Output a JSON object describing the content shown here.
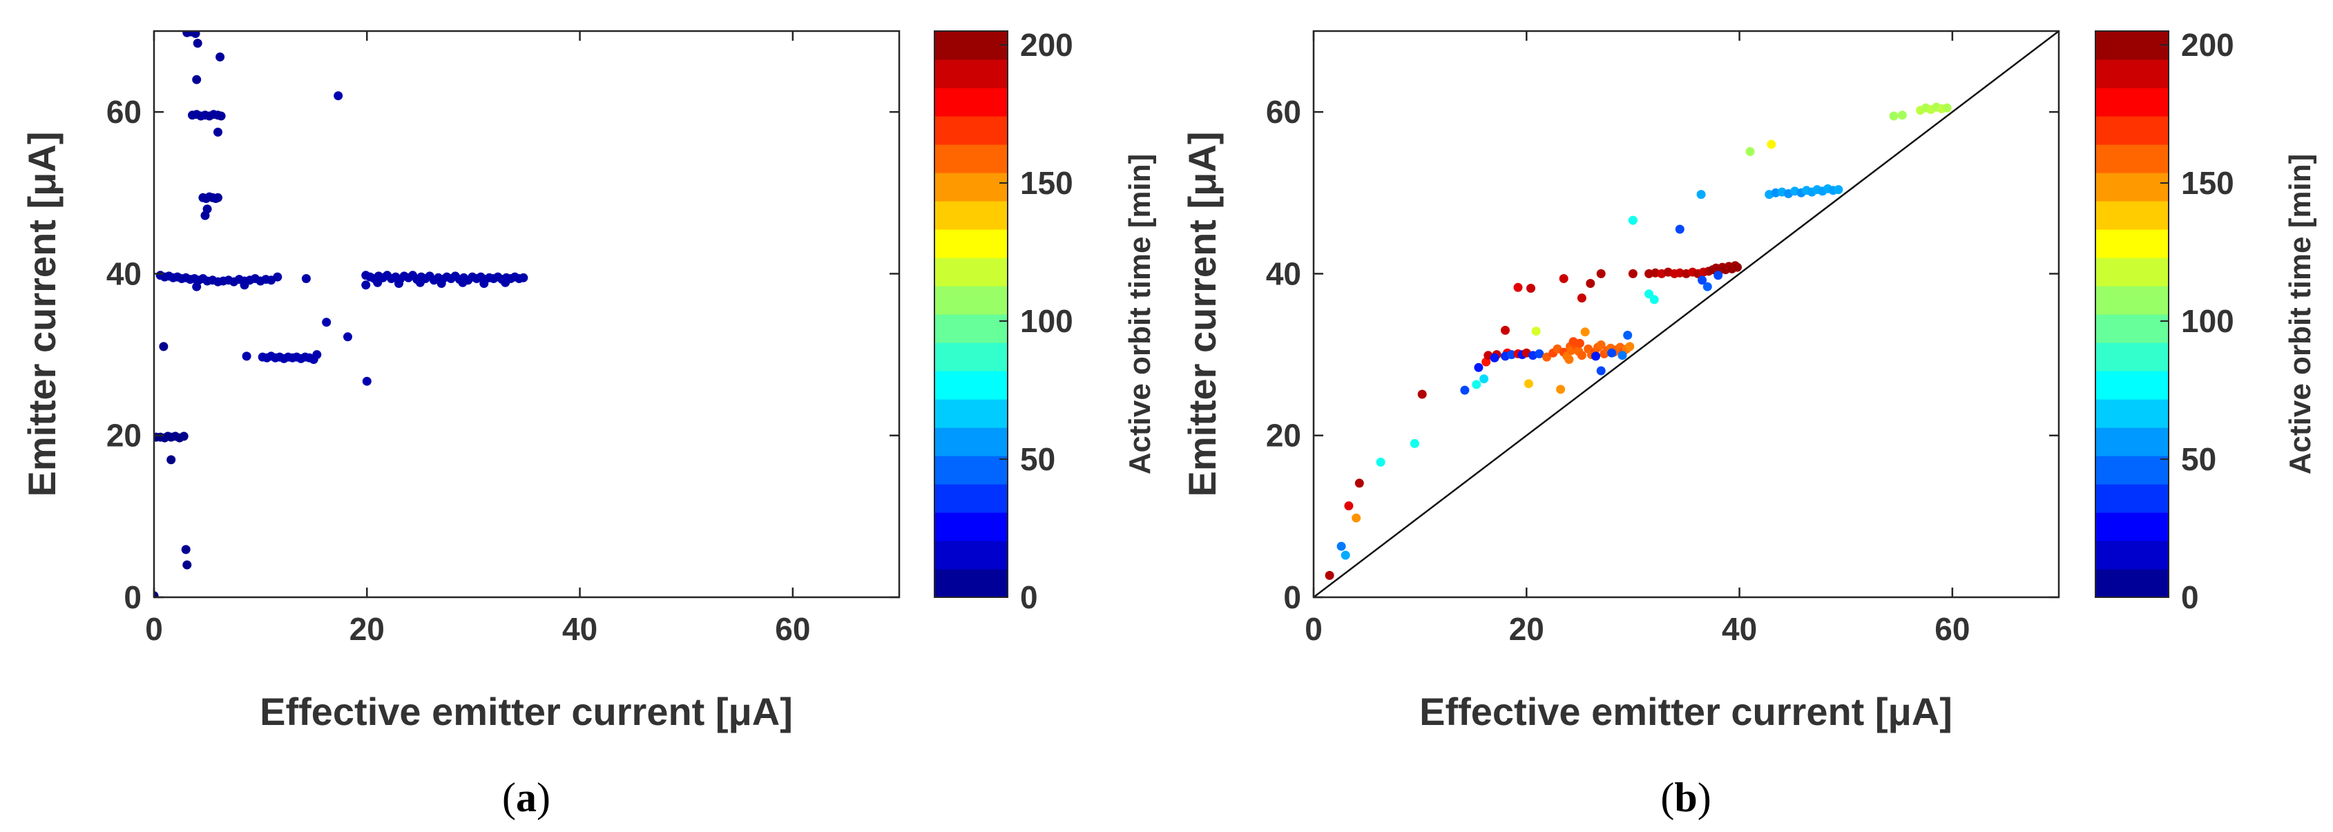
{
  "chart_data": [
    {
      "type": "scatter",
      "panel_label": "a",
      "title": "",
      "xlabel": "Effective emitter current [μA]",
      "ylabel": "Emitter current [μA]",
      "xlim": [
        0,
        70
      ],
      "ylim": [
        0,
        70
      ],
      "xticks": [
        "0",
        "20",
        "40",
        "60"
      ],
      "yticks": [
        "0",
        "20",
        "40",
        "60"
      ],
      "grid": false,
      "colorbar": {
        "label": "Active orbit time [min]",
        "range": [
          0,
          205
        ],
        "ticks": [
          "0",
          "50",
          "100",
          "150",
          "200"
        ],
        "colormap": "jet"
      },
      "reference_line": null,
      "points": [
        [
          0.0,
          0.2,
          0
        ],
        [
          0.2,
          19.8,
          2
        ],
        [
          0.6,
          19.8,
          2
        ],
        [
          1.0,
          19.7,
          2
        ],
        [
          1.3,
          19.9,
          2
        ],
        [
          1.6,
          19.8,
          2
        ],
        [
          2.0,
          19.9,
          2
        ],
        [
          2.4,
          19.7,
          2
        ],
        [
          2.8,
          19.9,
          2
        ],
        [
          1.6,
          17.0,
          2
        ],
        [
          0.9,
          31.0,
          3
        ],
        [
          3.0,
          5.9,
          3
        ],
        [
          3.1,
          4.0,
          3
        ],
        [
          3.1,
          69.8,
          5
        ],
        [
          3.5,
          69.9,
          5
        ],
        [
          3.9,
          69.7,
          5
        ],
        [
          4.1,
          68.5,
          5
        ],
        [
          4.0,
          64.0,
          5
        ],
        [
          3.6,
          59.6,
          6
        ],
        [
          4.0,
          59.7,
          6
        ],
        [
          4.4,
          59.5,
          6
        ],
        [
          4.8,
          59.6,
          6
        ],
        [
          5.2,
          59.5,
          6
        ],
        [
          5.6,
          59.7,
          6
        ],
        [
          6.0,
          59.6,
          6
        ],
        [
          6.3,
          59.5,
          6
        ],
        [
          6.0,
          57.5,
          6
        ],
        [
          6.2,
          66.8,
          6
        ],
        [
          4.6,
          49.4,
          6
        ],
        [
          4.9,
          49.3,
          6
        ],
        [
          5.2,
          49.5,
          6
        ],
        [
          5.5,
          49.4,
          6
        ],
        [
          5.8,
          49.3,
          6
        ],
        [
          6.0,
          49.4,
          6
        ],
        [
          4.8,
          47.2,
          6
        ],
        [
          5.0,
          48.0,
          6
        ],
        [
          0.6,
          39.8,
          8
        ],
        [
          1.0,
          39.6,
          8
        ],
        [
          1.4,
          39.7,
          8
        ],
        [
          1.8,
          39.5,
          8
        ],
        [
          2.2,
          39.6,
          8
        ],
        [
          2.6,
          39.4,
          8
        ],
        [
          3.0,
          39.5,
          8
        ],
        [
          3.4,
          39.3,
          8
        ],
        [
          3.8,
          39.4,
          8
        ],
        [
          4.2,
          39.2,
          8
        ],
        [
          4.6,
          39.4,
          8
        ],
        [
          5.0,
          39.1,
          8
        ],
        [
          5.5,
          39.2,
          8
        ],
        [
          6.0,
          39.0,
          8
        ],
        [
          6.5,
          39.1,
          8
        ],
        [
          7.0,
          39.2,
          8
        ],
        [
          7.5,
          39.0,
          8
        ],
        [
          8.0,
          39.3,
          8
        ],
        [
          8.5,
          39.1,
          8
        ],
        [
          9.0,
          39.2,
          8
        ],
        [
          9.5,
          39.4,
          8
        ],
        [
          10.0,
          39.1,
          8
        ],
        [
          10.5,
          39.3,
          8
        ],
        [
          11.0,
          39.2,
          8
        ],
        [
          11.6,
          39.6,
          8
        ],
        [
          14.3,
          39.4,
          8
        ],
        [
          4.0,
          38.4,
          8
        ],
        [
          8.5,
          38.6,
          8
        ],
        [
          8.7,
          29.8,
          10
        ],
        [
          10.2,
          29.7,
          10
        ],
        [
          10.6,
          29.6,
          10
        ],
        [
          11.0,
          29.8,
          10
        ],
        [
          11.4,
          29.6,
          10
        ],
        [
          11.8,
          29.7,
          10
        ],
        [
          12.2,
          29.5,
          10
        ],
        [
          12.6,
          29.7,
          10
        ],
        [
          13.0,
          29.6,
          10
        ],
        [
          13.4,
          29.7,
          10
        ],
        [
          13.8,
          29.5,
          10
        ],
        [
          14.2,
          29.7,
          10
        ],
        [
          14.6,
          29.6,
          10
        ],
        [
          15.0,
          29.4,
          10
        ],
        [
          15.3,
          30.0,
          10
        ],
        [
          16.2,
          34.0,
          10
        ],
        [
          17.3,
          62.0,
          10
        ],
        [
          18.2,
          32.2,
          10
        ],
        [
          20.0,
          26.7,
          10
        ],
        [
          19.9,
          39.8,
          9
        ],
        [
          19.9,
          38.6,
          9
        ],
        [
          20.3,
          39.6,
          9
        ],
        [
          20.7,
          39.4,
          9
        ],
        [
          21.1,
          39.7,
          9
        ],
        [
          21.5,
          39.5,
          9
        ],
        [
          21.9,
          39.8,
          9
        ],
        [
          22.3,
          39.4,
          9
        ],
        [
          22.7,
          39.6,
          9
        ],
        [
          23.1,
          39.3,
          9
        ],
        [
          23.5,
          39.7,
          9
        ],
        [
          23.9,
          39.5,
          9
        ],
        [
          24.3,
          39.8,
          9
        ],
        [
          24.7,
          39.3,
          9
        ],
        [
          25.1,
          39.6,
          9
        ],
        [
          25.5,
          39.4,
          9
        ],
        [
          25.9,
          39.7,
          9
        ],
        [
          26.3,
          39.2,
          9
        ],
        [
          26.7,
          39.5,
          9
        ],
        [
          27.1,
          39.3,
          9
        ],
        [
          27.5,
          39.6,
          9
        ],
        [
          27.9,
          39.4,
          9
        ],
        [
          28.3,
          39.7,
          9
        ],
        [
          28.7,
          39.3,
          9
        ],
        [
          29.1,
          39.5,
          9
        ],
        [
          29.5,
          39.2,
          9
        ],
        [
          29.9,
          39.6,
          9
        ],
        [
          30.3,
          39.4,
          9
        ],
        [
          30.7,
          39.6,
          9
        ],
        [
          31.1,
          39.3,
          9
        ],
        [
          31.5,
          39.5,
          9
        ],
        [
          31.9,
          39.4,
          9
        ],
        [
          32.3,
          39.6,
          9
        ],
        [
          32.7,
          39.3,
          9
        ],
        [
          33.1,
          39.5,
          9
        ],
        [
          33.5,
          39.4,
          9
        ],
        [
          33.9,
          39.6,
          9
        ],
        [
          34.3,
          39.4,
          9
        ],
        [
          34.7,
          39.5,
          9
        ],
        [
          21.0,
          38.9,
          9
        ],
        [
          23.0,
          38.8,
          9
        ],
        [
          25.0,
          38.9,
          9
        ],
        [
          27.0,
          38.8,
          9
        ],
        [
          29.0,
          38.9,
          9
        ],
        [
          31.0,
          38.8,
          9
        ],
        [
          33.0,
          38.9,
          9
        ]
      ]
    },
    {
      "type": "scatter",
      "panel_label": "b",
      "title": "",
      "xlabel": "Effective emitter current [μA]",
      "ylabel": "Emitter current [μA]",
      "xlim": [
        0,
        70
      ],
      "ylim": [
        0,
        70
      ],
      "xticks": [
        "0",
        "20",
        "40",
        "60"
      ],
      "yticks": [
        "0",
        "20",
        "40",
        "60"
      ],
      "grid": false,
      "colorbar": {
        "label": "Active orbit time [min]",
        "range": [
          0,
          205
        ],
        "ticks": [
          "0",
          "50",
          "100",
          "150",
          "200"
        ],
        "colormap": "jet"
      },
      "reference_line": {
        "x": [
          0,
          70
        ],
        "y": [
          0,
          70
        ]
      },
      "points": [
        [
          1.5,
          2.7,
          195
        ],
        [
          2.6,
          6.3,
          50
        ],
        [
          3.0,
          5.2,
          60
        ],
        [
          3.3,
          11.3,
          185
        ],
        [
          4.0,
          9.8,
          150
        ],
        [
          4.3,
          14.1,
          195
        ],
        [
          6.3,
          16.7,
          80
        ],
        [
          9.5,
          19.0,
          80
        ],
        [
          10.2,
          25.1,
          195
        ],
        [
          14.2,
          25.6,
          40
        ],
        [
          15.3,
          26.3,
          80
        ],
        [
          16.0,
          27.0,
          70
        ],
        [
          15.5,
          28.4,
          30
        ],
        [
          16.2,
          29.1,
          175
        ],
        [
          16.4,
          29.9,
          190
        ],
        [
          17.2,
          30.0,
          190
        ],
        [
          18.2,
          30.2,
          180
        ],
        [
          17.0,
          29.6,
          30
        ],
        [
          18.0,
          29.8,
          35
        ],
        [
          18.6,
          30.0,
          40
        ],
        [
          19.2,
          30.1,
          185
        ],
        [
          19.6,
          30.0,
          30
        ],
        [
          20.0,
          30.2,
          190
        ],
        [
          20.6,
          29.9,
          35
        ],
        [
          21.2,
          30.1,
          40
        ],
        [
          18.0,
          33.0,
          190
        ],
        [
          19.2,
          38.3,
          185
        ],
        [
          20.4,
          38.2,
          190
        ],
        [
          20.9,
          32.9,
          120
        ],
        [
          20.2,
          26.4,
          140
        ],
        [
          21.9,
          29.7,
          160
        ],
        [
          22.5,
          30.2,
          165
        ],
        [
          22.9,
          30.7,
          160
        ],
        [
          23.2,
          25.7,
          150
        ],
        [
          23.5,
          30.3,
          165
        ],
        [
          23.8,
          29.8,
          155
        ],
        [
          24.1,
          31.0,
          160
        ],
        [
          24.2,
          30.5,
          158
        ],
        [
          24.6,
          31.2,
          162
        ],
        [
          24.9,
          30.4,
          158
        ],
        [
          25.2,
          29.9,
          160
        ],
        [
          25.5,
          32.8,
          150
        ],
        [
          25.8,
          30.7,
          160
        ],
        [
          26.1,
          30.0,
          158
        ],
        [
          26.4,
          30.3,
          162
        ],
        [
          26.7,
          30.9,
          160
        ],
        [
          27.0,
          31.2,
          158
        ],
        [
          27.3,
          30.1,
          162
        ],
        [
          27.6,
          30.5,
          160
        ],
        [
          27.9,
          30.8,
          158
        ],
        [
          28.2,
          30.3,
          162
        ],
        [
          28.5,
          30.6,
          160
        ],
        [
          28.8,
          30.9,
          158
        ],
        [
          29.1,
          30.4,
          162
        ],
        [
          29.4,
          30.7,
          155
        ],
        [
          29.7,
          31.0,
          152
        ],
        [
          24.4,
          31.6,
          165
        ],
        [
          25.0,
          31.4,
          165
        ],
        [
          24.0,
          29.4,
          155
        ],
        [
          26.5,
          29.8,
          30
        ],
        [
          27.0,
          28.0,
          40
        ],
        [
          28.0,
          30.2,
          40
        ],
        [
          29.0,
          29.9,
          50
        ],
        [
          29.5,
          32.4,
          45
        ],
        [
          23.5,
          39.4,
          190
        ],
        [
          25.2,
          37.0,
          190
        ],
        [
          26.0,
          38.8,
          195
        ],
        [
          27.0,
          40.0,
          195
        ],
        [
          30.0,
          46.6,
          80
        ],
        [
          30.0,
          40.0,
          195
        ],
        [
          31.5,
          37.5,
          80
        ],
        [
          32.0,
          36.8,
          80
        ],
        [
          31.5,
          40.0,
          195
        ],
        [
          32.1,
          40.1,
          195
        ],
        [
          32.7,
          40.0,
          190
        ],
        [
          33.3,
          40.2,
          195
        ],
        [
          33.9,
          40.0,
          190
        ],
        [
          34.4,
          40.1,
          190
        ],
        [
          34.4,
          45.5,
          40
        ],
        [
          35.0,
          40.0,
          195
        ],
        [
          35.6,
          40.2,
          190
        ],
        [
          36.1,
          40.0,
          195
        ],
        [
          36.4,
          49.8,
          60
        ],
        [
          36.6,
          40.2,
          190
        ],
        [
          37.1,
          40.3,
          195
        ],
        [
          37.5,
          40.5,
          200
        ],
        [
          37.8,
          40.7,
          198
        ],
        [
          38.1,
          40.4,
          200
        ],
        [
          38.4,
          40.8,
          198
        ],
        [
          38.7,
          40.5,
          200
        ],
        [
          39.0,
          40.9,
          198
        ],
        [
          39.3,
          40.6,
          200
        ],
        [
          39.6,
          41.0,
          198
        ],
        [
          39.8,
          40.8,
          200
        ],
        [
          36.5,
          39.2,
          40
        ],
        [
          37.0,
          38.4,
          45
        ],
        [
          38.0,
          39.8,
          40
        ],
        [
          41.0,
          55.1,
          110
        ],
        [
          43.0,
          56.0,
          130
        ],
        [
          42.8,
          49.8,
          60
        ],
        [
          43.4,
          50.0,
          55
        ],
        [
          44.0,
          50.1,
          60
        ],
        [
          44.6,
          49.9,
          55
        ],
        [
          45.2,
          50.2,
          60
        ],
        [
          45.8,
          50.0,
          55
        ],
        [
          46.3,
          50.3,
          60
        ],
        [
          46.8,
          50.1,
          58
        ],
        [
          47.3,
          50.4,
          60
        ],
        [
          47.8,
          50.2,
          58
        ],
        [
          48.3,
          50.5,
          60
        ],
        [
          48.8,
          50.3,
          58
        ],
        [
          49.3,
          50.4,
          60
        ],
        [
          54.5,
          59.5,
          110
        ],
        [
          55.3,
          59.6,
          110
        ],
        [
          57.0,
          60.2,
          115
        ],
        [
          57.5,
          60.5,
          112
        ],
        [
          58.0,
          60.3,
          115
        ],
        [
          58.5,
          60.6,
          112
        ],
        [
          59.0,
          60.4,
          115
        ],
        [
          59.5,
          60.5,
          112
        ]
      ]
    }
  ]
}
